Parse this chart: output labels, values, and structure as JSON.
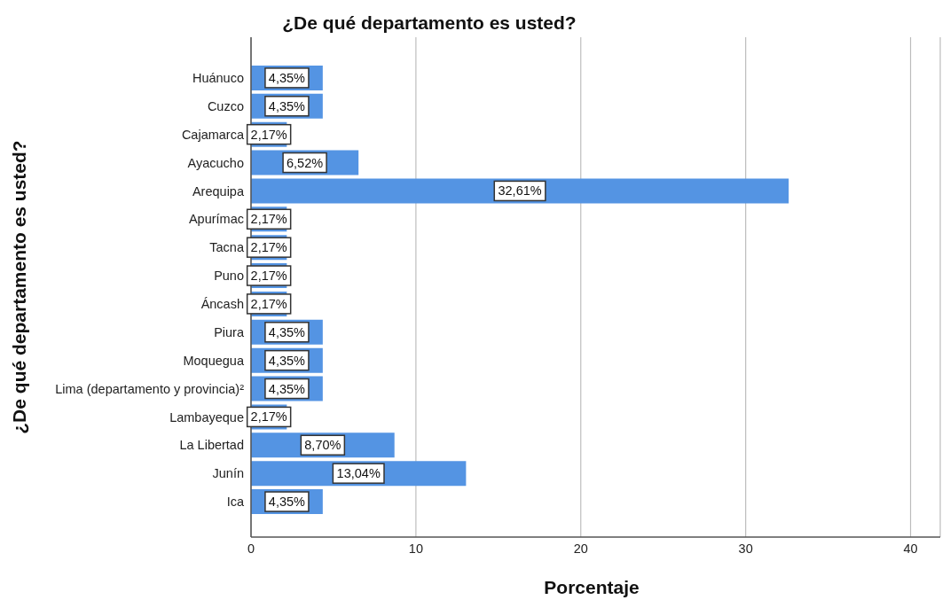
{
  "chart_data": {
    "type": "bar",
    "orientation": "horizontal",
    "title": "¿De qué departamento es usted?",
    "xlabel": "Porcentaje",
    "ylabel": "¿De qué departamento es usted?",
    "categories": [
      "Huánuco",
      "Cuzco",
      "Cajamarca",
      "Ayacucho",
      "Arequipa",
      "Apurímac",
      "Tacna",
      "Puno",
      "Áncash",
      "Piura",
      "Moquegua",
      "Lima (departamento y provincia)²",
      "Lambayeque",
      "La Libertad",
      "Junín",
      "Ica"
    ],
    "values": [
      4.35,
      4.35,
      2.17,
      6.52,
      32.61,
      2.17,
      2.17,
      2.17,
      2.17,
      4.35,
      4.35,
      4.35,
      2.17,
      8.7,
      13.04,
      4.35
    ],
    "value_labels": [
      "4,35%",
      "4,35%",
      "2,17%",
      "6,52%",
      "32,61%",
      "2,17%",
      "2,17%",
      "2,17%",
      "2,17%",
      "4,35%",
      "4,35%",
      "4,35%",
      "2,17%",
      "8,70%",
      "13,04%",
      "4,35%"
    ],
    "color": "#5494e3",
    "xlim": [
      0,
      41.8
    ],
    "xticks": [
      0,
      10,
      20,
      30,
      40
    ],
    "grid": "x"
  }
}
